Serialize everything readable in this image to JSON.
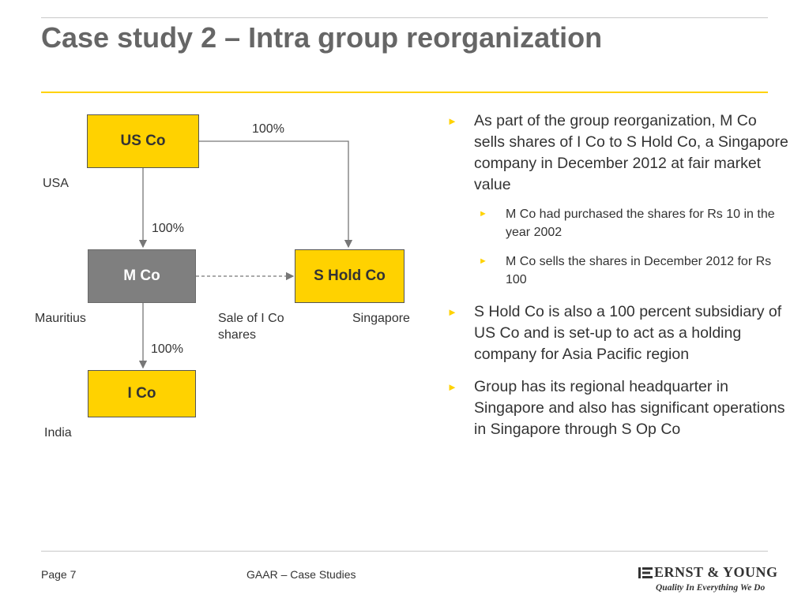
{
  "title": "Case study 2 – Intra group reorganization",
  "diagram": {
    "entities": {
      "us_co": "US Co",
      "m_co": "M Co",
      "s_hold_co": "S Hold Co",
      "i_co": "I Co"
    },
    "countries": {
      "usa": "USA",
      "mauritius": "Mauritius",
      "singapore": "Singapore",
      "india": "India"
    },
    "ownership": {
      "us_to_shold": "100%",
      "us_to_m": "100%",
      "m_to_i": "100%"
    },
    "transaction_label": "Sale of I Co shares"
  },
  "bullets": {
    "b1": "As part of the group reorganization, M Co sells shares of I Co to S Hold Co, a Singapore company in December 2012 at fair market value",
    "b1_sub1": "M Co had purchased the shares for Rs 10 in the year 2002",
    "b1_sub2": "M Co sells the shares in December 2012 for Rs 100",
    "b2": "S Hold Co is also a 100 percent subsidiary of US Co and is set-up to act as a holding company for Asia Pacific region",
    "b3": "Group has its regional headquarter in Singapore and also has significant operations in Singapore through S Op Co"
  },
  "footer": {
    "page": "Page 7",
    "center": "GAAR – Case Studies",
    "logo_name": "ERNST & YOUNG",
    "logo_tagline": "Quality In Everything We Do"
  },
  "colors": {
    "accent_yellow": "#ffd200",
    "box_gray": "#7f7f7f",
    "title_gray": "#666666"
  }
}
